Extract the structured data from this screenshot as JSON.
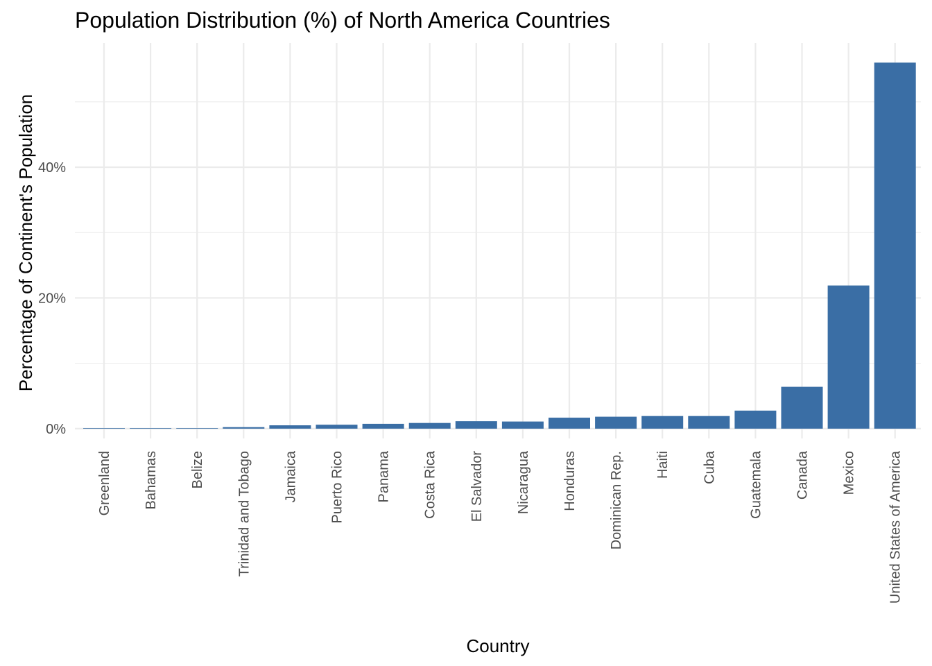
{
  "chart_data": {
    "type": "bar",
    "title": "Population Distribution (%) of North America Countries",
    "xlabel": "Country",
    "ylabel": "Percentage of Continent's Population",
    "categories": [
      "Greenland",
      "Bahamas",
      "Belize",
      "Trinidad and Tobago",
      "Jamaica",
      "Puerto Rico",
      "Panama",
      "Costa Rica",
      "El Salvador",
      "Nicaragua",
      "Honduras",
      "Dominican Rep.",
      "Haiti",
      "Cuba",
      "Guatemala",
      "Canada",
      "Mexico",
      "United States of America"
    ],
    "values": [
      0.01,
      0.07,
      0.07,
      0.23,
      0.51,
      0.6,
      0.74,
      0.87,
      1.14,
      1.09,
      1.68,
      1.83,
      1.93,
      1.93,
      2.76,
      6.4,
      21.9,
      56.0
    ],
    "yticks": [
      0,
      20,
      40
    ],
    "ytick_labels": [
      "0%",
      "20%",
      "40%"
    ],
    "ylim": [
      -1.5,
      59
    ],
    "grid": true,
    "colors": {
      "bar": "#3a6ea5",
      "grid": "#ebebeb",
      "tick_text": "#4d4d4d",
      "text": "#000000"
    }
  }
}
